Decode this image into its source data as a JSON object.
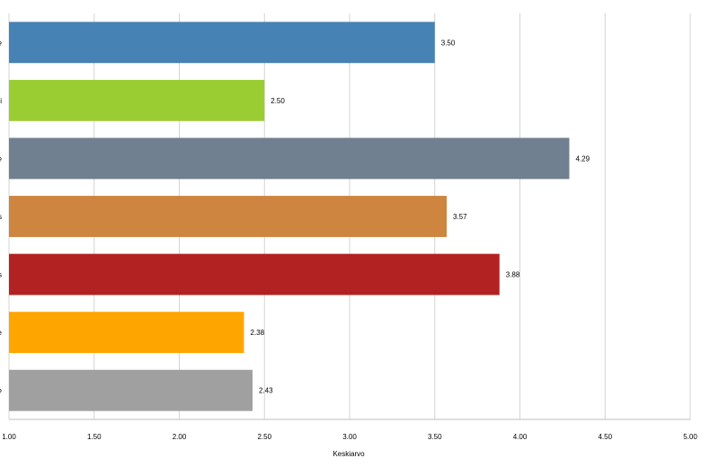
{
  "chart_data": {
    "type": "bar",
    "orientation": "horizontal",
    "categories": [
      "e",
      "i",
      "e",
      "s",
      "s",
      "e",
      "e"
    ],
    "values": [
      3.5,
      2.5,
      4.29,
      3.57,
      3.88,
      2.38,
      2.43
    ],
    "data_labels": [
      "3.50",
      "2.50",
      "4.29",
      "3.57",
      "3.88",
      "2.38",
      "2.43"
    ],
    "colors": [
      "#4682b4",
      "#9acd32",
      "#708090",
      "#cd853f",
      "#b22222",
      "#ffa500",
      "#a0a0a0"
    ],
    "xlabel": "Keskiarvo",
    "ylabel": "",
    "xlim": [
      1.0,
      5.0
    ],
    "xticks": [
      1.0,
      1.5,
      2.0,
      2.5,
      3.0,
      3.5,
      4.0,
      4.5,
      5.0
    ],
    "xtick_labels": [
      "1.00",
      "1.50",
      "2.00",
      "2.50",
      "3.00",
      "3.50",
      "4.00",
      "4.50",
      "5.00"
    ],
    "grid": "vertical",
    "legend": "none"
  }
}
